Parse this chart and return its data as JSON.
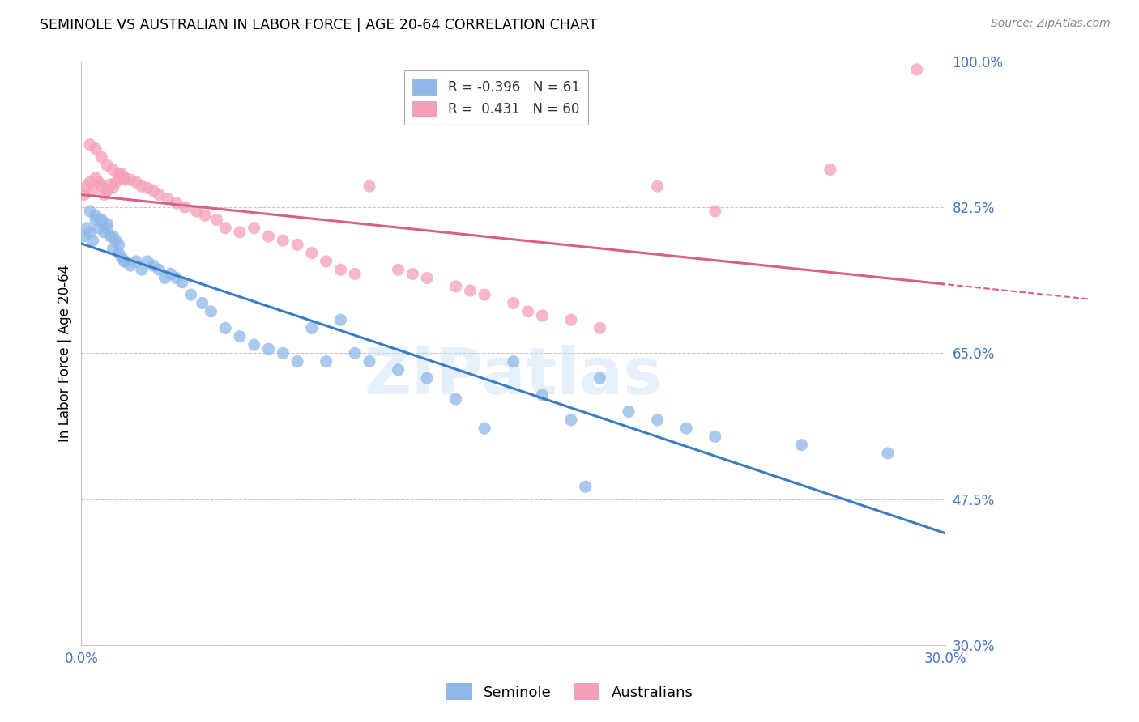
{
  "title": "SEMINOLE VS AUSTRALIAN IN LABOR FORCE | AGE 20-64 CORRELATION CHART",
  "source": "Source: ZipAtlas.com",
  "ylabel": "In Labor Force | Age 20-64",
  "xmin": 0.0,
  "xmax": 0.3,
  "ymin": 0.3,
  "ymax": 1.0,
  "yticks": [
    0.3,
    0.475,
    0.65,
    0.825,
    1.0
  ],
  "ytick_labels": [
    "30.0%",
    "47.5%",
    "65.0%",
    "82.5%",
    "100.0%"
  ],
  "xticks": [
    0.0,
    0.05,
    0.1,
    0.15,
    0.2,
    0.25,
    0.3
  ],
  "xtick_labels": [
    "0.0%",
    "",
    "",
    "",
    "",
    "",
    "30.0%"
  ],
  "seminole_R": -0.396,
  "seminole_N": 61,
  "australian_R": 0.431,
  "australian_N": 60,
  "seminole_color": "#8fb8e8",
  "australian_color": "#f4a0b8",
  "seminole_line_color": "#3a7cc4",
  "australian_line_color": "#d96080",
  "watermark": "ZIPatlas",
  "seminole_x": [
    0.001,
    0.002,
    0.003,
    0.004,
    0.005,
    0.006,
    0.007,
    0.008,
    0.009,
    0.01,
    0.011,
    0.012,
    0.013,
    0.014,
    0.015,
    0.003,
    0.005,
    0.007,
    0.009,
    0.011,
    0.013,
    0.015,
    0.017,
    0.019,
    0.021,
    0.023,
    0.025,
    0.027,
    0.029,
    0.031,
    0.033,
    0.035,
    0.038,
    0.042,
    0.045,
    0.05,
    0.055,
    0.06,
    0.065,
    0.07,
    0.075,
    0.08,
    0.085,
    0.09,
    0.095,
    0.1,
    0.11,
    0.12,
    0.13,
    0.14,
    0.15,
    0.16,
    0.17,
    0.175,
    0.18,
    0.19,
    0.2,
    0.21,
    0.22,
    0.25,
    0.28
  ],
  "seminole_y": [
    0.79,
    0.8,
    0.795,
    0.785,
    0.81,
    0.8,
    0.808,
    0.795,
    0.805,
    0.79,
    0.775,
    0.785,
    0.77,
    0.765,
    0.76,
    0.82,
    0.815,
    0.81,
    0.8,
    0.79,
    0.78,
    0.76,
    0.755,
    0.76,
    0.75,
    0.76,
    0.755,
    0.75,
    0.74,
    0.745,
    0.74,
    0.735,
    0.72,
    0.71,
    0.7,
    0.68,
    0.67,
    0.66,
    0.655,
    0.65,
    0.64,
    0.68,
    0.64,
    0.69,
    0.65,
    0.64,
    0.63,
    0.62,
    0.595,
    0.56,
    0.64,
    0.6,
    0.57,
    0.49,
    0.62,
    0.58,
    0.57,
    0.56,
    0.55,
    0.54,
    0.53
  ],
  "australian_x": [
    0.001,
    0.002,
    0.003,
    0.004,
    0.005,
    0.006,
    0.007,
    0.008,
    0.009,
    0.01,
    0.011,
    0.012,
    0.013,
    0.014,
    0.015,
    0.003,
    0.005,
    0.007,
    0.009,
    0.011,
    0.013,
    0.015,
    0.017,
    0.019,
    0.021,
    0.023,
    0.025,
    0.027,
    0.03,
    0.033,
    0.036,
    0.04,
    0.043,
    0.047,
    0.05,
    0.055,
    0.06,
    0.065,
    0.07,
    0.075,
    0.08,
    0.085,
    0.09,
    0.095,
    0.1,
    0.11,
    0.115,
    0.12,
    0.13,
    0.135,
    0.14,
    0.15,
    0.155,
    0.16,
    0.17,
    0.18,
    0.2,
    0.22,
    0.26,
    0.29
  ],
  "australian_y": [
    0.84,
    0.85,
    0.855,
    0.845,
    0.86,
    0.855,
    0.85,
    0.84,
    0.845,
    0.852,
    0.848,
    0.855,
    0.86,
    0.865,
    0.858,
    0.9,
    0.895,
    0.885,
    0.875,
    0.87,
    0.865,
    0.86,
    0.858,
    0.855,
    0.85,
    0.848,
    0.845,
    0.84,
    0.835,
    0.83,
    0.825,
    0.82,
    0.815,
    0.81,
    0.8,
    0.795,
    0.8,
    0.79,
    0.785,
    0.78,
    0.77,
    0.76,
    0.75,
    0.745,
    0.85,
    0.75,
    0.745,
    0.74,
    0.73,
    0.725,
    0.72,
    0.71,
    0.7,
    0.695,
    0.69,
    0.68,
    0.85,
    0.82,
    0.87,
    0.99
  ]
}
